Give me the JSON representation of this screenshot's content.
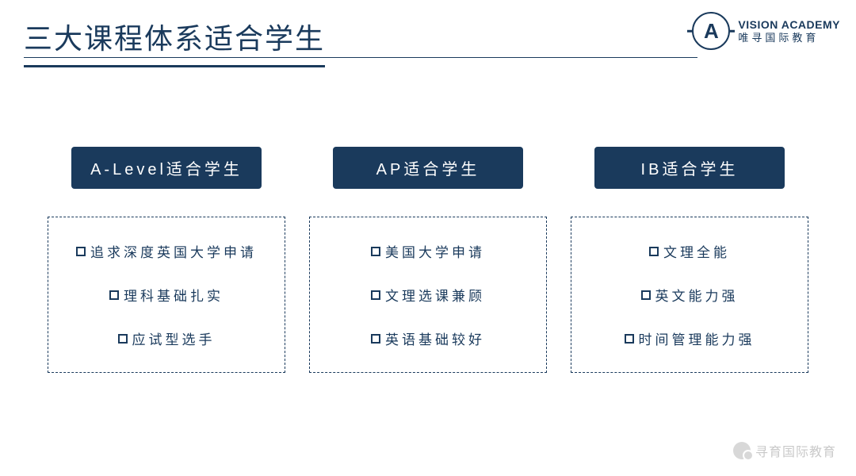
{
  "title": "三大课程体系适合学生",
  "logo": {
    "letter": "A",
    "en": "VISION ACADEMY",
    "cn": "唯寻国际教育"
  },
  "colors": {
    "primary": "#1a3a5c",
    "background": "#ffffff",
    "watermark": "#888888"
  },
  "columns": [
    {
      "header": "A-Level适合学生",
      "items": [
        "追求深度英国大学申请",
        "理科基础扎实",
        "应试型选手"
      ]
    },
    {
      "header": "AP适合学生",
      "items": [
        "美国大学申请",
        "文理选课兼顾",
        "英语基础较好"
      ]
    },
    {
      "header": "IB适合学生",
      "items": [
        "文理全能",
        "英文能力强",
        "时间管理能力强"
      ]
    }
  ],
  "watermark": "寻育国际教育"
}
